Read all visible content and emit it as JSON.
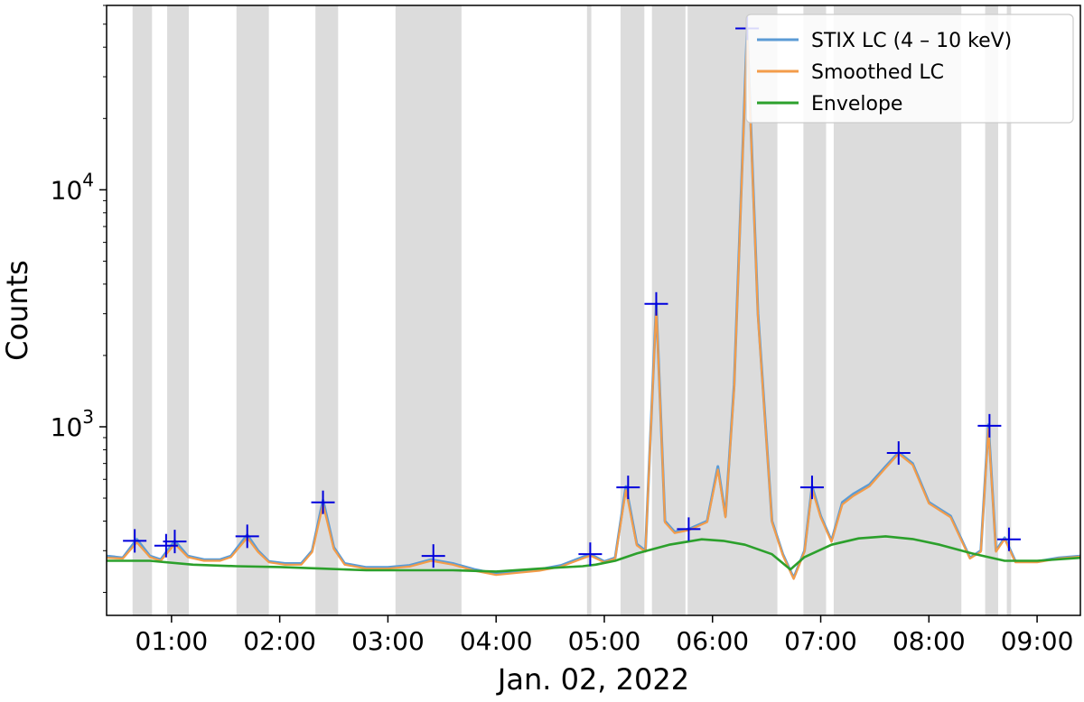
{
  "chart_data": {
    "type": "line",
    "title": "",
    "xlabel": "Jan. 02, 2022",
    "ylabel": "Counts",
    "yscale": "log",
    "xlim_hours": [
      0.4,
      9.4
    ],
    "ylim": [
      160,
      60000
    ],
    "x_ticks": [
      "01:00",
      "02:00",
      "03:00",
      "04:00",
      "05:00",
      "06:00",
      "07:00",
      "08:00",
      "09:00"
    ],
    "x_tick_values_hours": [
      1,
      2,
      3,
      4,
      5,
      6,
      7,
      8,
      9
    ],
    "y_ticks": [
      {
        "base": "10",
        "exp": "3",
        "value": 1000
      },
      {
        "base": "10",
        "exp": "4",
        "value": 10000
      }
    ],
    "legend": {
      "placement": "top-right"
    },
    "colors": {
      "stix": "#5b9bd5",
      "smoothed": "#f39c4a",
      "envelope": "#2ca02c",
      "peaks": "#0000dd",
      "shade": "#dcdcdc"
    },
    "series": [
      {
        "name": "STIX LC (4 – 10 keV)",
        "x_hours": [
          0.4,
          0.55,
          0.68,
          0.8,
          0.9,
          1.03,
          1.15,
          1.3,
          1.45,
          1.55,
          1.7,
          1.8,
          1.9,
          2.05,
          2.2,
          2.3,
          2.4,
          2.5,
          2.6,
          2.8,
          3.0,
          3.2,
          3.4,
          3.6,
          3.8,
          4.0,
          4.2,
          4.4,
          4.6,
          4.87,
          5.0,
          5.1,
          5.2,
          5.3,
          5.38,
          5.48,
          5.56,
          5.65,
          5.78,
          5.95,
          6.05,
          6.12,
          6.2,
          6.32,
          6.42,
          6.55,
          6.65,
          6.75,
          6.85,
          6.92,
          7.0,
          7.1,
          7.2,
          7.3,
          7.45,
          7.6,
          7.72,
          7.85,
          8.0,
          8.2,
          8.38,
          8.48,
          8.55,
          8.62,
          8.7,
          8.8,
          9.0,
          9.2,
          9.4
        ],
        "y": [
          285,
          280,
          335,
          285,
          275,
          330,
          285,
          275,
          275,
          285,
          350,
          300,
          270,
          265,
          265,
          300,
          490,
          310,
          265,
          255,
          255,
          260,
          275,
          265,
          250,
          240,
          245,
          250,
          260,
          290,
          270,
          280,
          560,
          320,
          300,
          3300,
          400,
          360,
          370,
          400,
          680,
          420,
          1500,
          48000,
          3000,
          400,
          290,
          230,
          300,
          560,
          420,
          330,
          480,
          520,
          570,
          680,
          780,
          700,
          480,
          420,
          280,
          300,
          1020,
          300,
          340,
          270,
          270,
          280,
          285
        ]
      },
      {
        "name": "Smoothed LC",
        "x_hours": [
          0.4,
          0.55,
          0.68,
          0.8,
          0.9,
          1.03,
          1.15,
          1.3,
          1.45,
          1.55,
          1.7,
          1.8,
          1.9,
          2.05,
          2.2,
          2.3,
          2.4,
          2.5,
          2.6,
          2.8,
          3.0,
          3.2,
          3.4,
          3.6,
          3.8,
          4.0,
          4.2,
          4.4,
          4.6,
          4.87,
          5.0,
          5.1,
          5.2,
          5.3,
          5.38,
          5.48,
          5.56,
          5.65,
          5.78,
          5.95,
          6.05,
          6.12,
          6.2,
          6.32,
          6.42,
          6.55,
          6.65,
          6.75,
          6.85,
          6.92,
          7.0,
          7.1,
          7.2,
          7.3,
          7.45,
          7.6,
          7.72,
          7.85,
          8.0,
          8.2,
          8.38,
          8.48,
          8.55,
          8.62,
          8.7,
          8.8,
          9.0,
          9.2,
          9.4
        ],
        "y": [
          280,
          278,
          325,
          282,
          272,
          320,
          282,
          272,
          272,
          282,
          340,
          296,
          268,
          262,
          262,
          296,
          470,
          305,
          262,
          252,
          252,
          257,
          272,
          262,
          247,
          237,
          242,
          247,
          257,
          286,
          268,
          278,
          540,
          316,
          297,
          3200,
          395,
          356,
          366,
          396,
          660,
          415,
          1450,
          46000,
          2900,
          396,
          287,
          228,
          297,
          545,
          415,
          327,
          470,
          510,
          560,
          670,
          770,
          690,
          475,
          415,
          278,
          297,
          980,
          297,
          336,
          268,
          268,
          278,
          283
        ]
      },
      {
        "name": "Envelope",
        "x_hours": [
          0.4,
          0.8,
          1.2,
          1.6,
          2.0,
          2.4,
          2.8,
          3.2,
          3.6,
          4.0,
          4.4,
          4.8,
          4.92,
          5.1,
          5.3,
          5.6,
          5.9,
          6.1,
          6.3,
          6.55,
          6.72,
          6.85,
          7.1,
          7.35,
          7.6,
          7.85,
          8.1,
          8.4,
          8.7,
          9.0,
          9.4
        ],
        "y": [
          272,
          272,
          262,
          258,
          256,
          252,
          248,
          248,
          248,
          245,
          252,
          258,
          262,
          272,
          292,
          318,
          335,
          330,
          318,
          290,
          250,
          282,
          318,
          338,
          345,
          336,
          318,
          292,
          272,
          272,
          280
        ]
      }
    ],
    "peaks": [
      {
        "x_hours": 0.66,
        "y": 330
      },
      {
        "x_hours": 0.95,
        "y": 315
      },
      {
        "x_hours": 1.03,
        "y": 328
      },
      {
        "x_hours": 1.7,
        "y": 345
      },
      {
        "x_hours": 2.4,
        "y": 480
      },
      {
        "x_hours": 3.42,
        "y": 285
      },
      {
        "x_hours": 4.87,
        "y": 290
      },
      {
        "x_hours": 5.22,
        "y": 555
      },
      {
        "x_hours": 5.48,
        "y": 3300
      },
      {
        "x_hours": 5.78,
        "y": 370
      },
      {
        "x_hours": 6.32,
        "y": 48000
      },
      {
        "x_hours": 6.92,
        "y": 555
      },
      {
        "x_hours": 7.72,
        "y": 775
      },
      {
        "x_hours": 8.56,
        "y": 1010
      },
      {
        "x_hours": 8.74,
        "y": 335
      }
    ],
    "shaded_intervals_hours": [
      [
        0.64,
        0.82
      ],
      [
        0.96,
        1.16
      ],
      [
        1.6,
        1.9
      ],
      [
        2.33,
        2.54
      ],
      [
        3.07,
        3.68
      ],
      [
        4.84,
        4.88
      ],
      [
        5.15,
        5.37
      ],
      [
        5.44,
        5.75
      ],
      [
        5.77,
        6.6
      ],
      [
        6.84,
        7.05
      ],
      [
        7.12,
        8.3
      ],
      [
        8.52,
        8.64
      ],
      [
        8.72,
        8.76
      ]
    ]
  }
}
